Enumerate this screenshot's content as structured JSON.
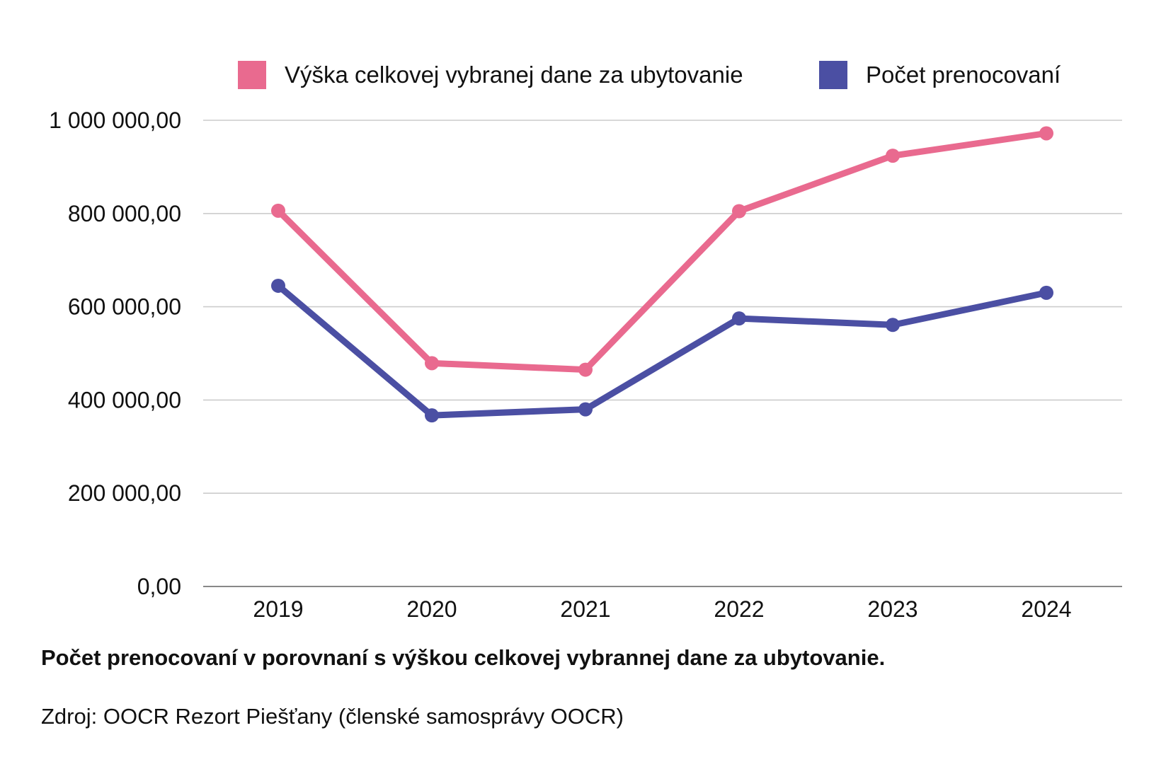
{
  "chart_data": {
    "type": "line",
    "categories": [
      "2019",
      "2020",
      "2021",
      "2022",
      "2023",
      "2024"
    ],
    "series": [
      {
        "name": "Výška celkovej vybranej dane za ubytovanie",
        "color": "#e96a8f",
        "values": [
          806000,
          479000,
          465000,
          805000,
          924000,
          972000
        ]
      },
      {
        "name": "Počet prenocovaní",
        "color": "#4b4fa3",
        "values": [
          645000,
          367000,
          380000,
          575000,
          561000,
          630000
        ]
      }
    ],
    "ylim": [
      0,
      1000000
    ],
    "y_ticks": [
      {
        "value": 0,
        "label": "0,00"
      },
      {
        "value": 200000,
        "label": "200 000,00"
      },
      {
        "value": 400000,
        "label": "400 000,00"
      },
      {
        "value": 600000,
        "label": "600 000,00"
      },
      {
        "value": 800000,
        "label": "800 000,00"
      },
      {
        "value": 1000000,
        "label": "1 000 000,00"
      }
    ],
    "grid": true,
    "legend_position": "top",
    "gridline_color": "#cccccc",
    "axis_color": "#888888"
  },
  "caption": "Počet prenocovaní v porovnaní s výškou celkovej vybrannej dane za ubytovanie.",
  "source": "Zdroj: OOCR Rezort Piešťany (členské samosprávy OOCR)"
}
